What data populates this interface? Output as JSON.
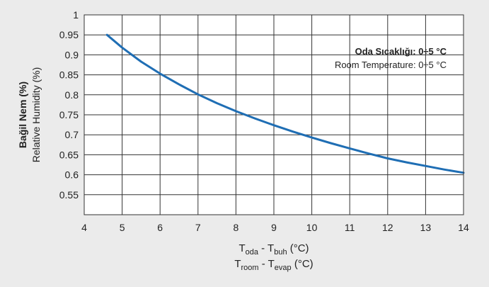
{
  "chart_data": {
    "type": "line",
    "xlabel_tr": {
      "main": "T",
      "sub1": "oda",
      "mid": " - T",
      "sub2": "buh",
      "unit": " (°C)"
    },
    "xlabel_en": {
      "main": "T",
      "sub1": "room",
      "mid": " - T",
      "sub2": "evap",
      "unit": " (°C)"
    },
    "ylabel_tr": "Bağil Nem (%)",
    "ylabel_en": "Relative Humidity (%)",
    "legend_title": "Oda Sıcaklığı: 0÷5 °C",
    "legend_subtitle": "Room Temperature: 0÷5 °C",
    "legend_placement": "top-right",
    "xlim": [
      4,
      14
    ],
    "ylim": [
      0.5,
      1
    ],
    "grid": true,
    "x_ticks": [
      "4",
      "5",
      "6",
      "7",
      "8",
      "9",
      "10",
      "11",
      "12",
      "13",
      "14"
    ],
    "y_ticks": [
      "0.55",
      "0.6",
      "0.65",
      "0.7",
      "0.75",
      "0.8",
      "0.85",
      "0.9",
      "0.95",
      "1"
    ],
    "series": [
      {
        "color": "#1f6eb4",
        "x": [
          4.6,
          5.0,
          5.5,
          6.0,
          6.5,
          7.0,
          7.5,
          8.0,
          8.5,
          9.0,
          9.5,
          10.0,
          10.5,
          11.0,
          11.5,
          12.0,
          12.5,
          13.0,
          13.5,
          14.0
        ],
        "y": [
          0.95,
          0.918,
          0.883,
          0.853,
          0.826,
          0.801,
          0.779,
          0.759,
          0.741,
          0.724,
          0.708,
          0.693,
          0.679,
          0.666,
          0.653,
          0.641,
          0.631,
          0.622,
          0.613,
          0.605
        ]
      }
    ]
  }
}
